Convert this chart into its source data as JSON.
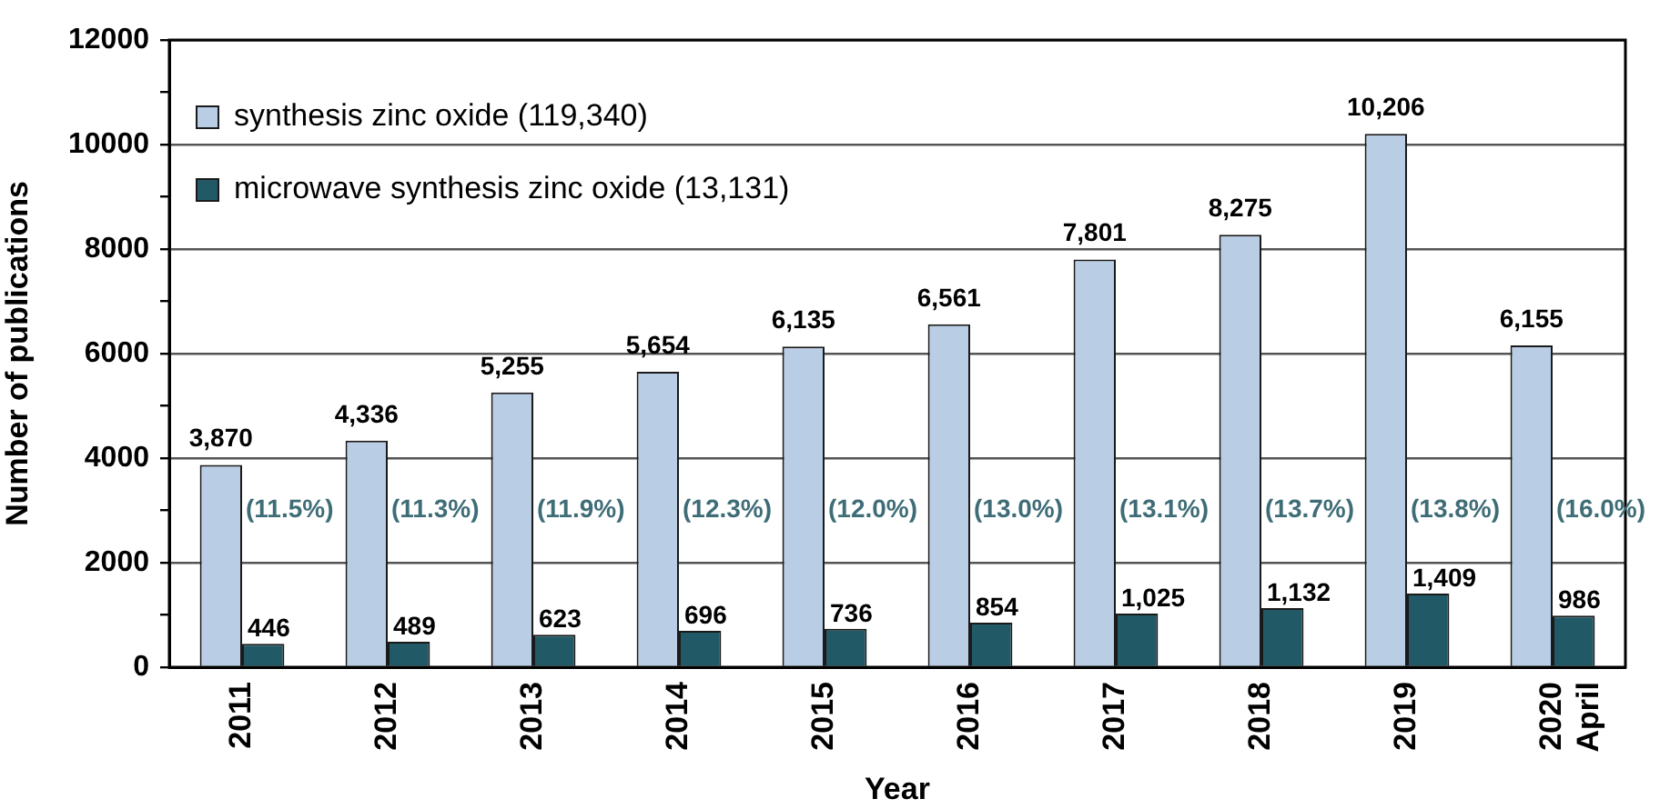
{
  "chart_data": {
    "type": "bar",
    "xlabel": "Year",
    "ylabel": "Number of publications",
    "categories": [
      "2011",
      "2012",
      "2013",
      "2014",
      "2015",
      "2016",
      "2017",
      "2018",
      "2019",
      "2020 April"
    ],
    "series": [
      {
        "name": "synthesis zinc oxide (119,340)",
        "color": "#b9cde5",
        "values": [
          3870,
          4336,
          5255,
          5654,
          6135,
          6561,
          7801,
          8275,
          10206,
          6155
        ],
        "value_labels": [
          "3,870",
          "4,336",
          "5,255",
          "5,654",
          "6,135",
          "6,561",
          "7,801",
          "8,275",
          "10,206",
          "6,155"
        ]
      },
      {
        "name": "microwave synthesis zinc oxide (13,131)",
        "color": "#215a66",
        "values": [
          446,
          489,
          623,
          696,
          736,
          854,
          1025,
          1132,
          1409,
          986
        ],
        "value_labels": [
          "446",
          "489",
          "623",
          "696",
          "736",
          "854",
          "1,025",
          "1,132",
          "1,409",
          "986"
        ]
      }
    ],
    "ylim": [
      0,
      12000
    ],
    "yticks": [
      0,
      {
        "value": 1000,
        "label": null
      },
      2000,
      {
        "value": 3000,
        "label": null
      },
      4000,
      {
        "value": 5000,
        "label": null
      },
      6000,
      {
        "value": 7000,
        "label": null
      },
      8000,
      {
        "value": 9000,
        "label": null
      },
      10000,
      {
        "value": 11000,
        "label": null
      },
      12000
    ],
    "annotations": [
      {
        "text": "(11.5%)",
        "x": "2011",
        "y": 3000
      },
      {
        "text": "(11.3%)",
        "x": "2012",
        "y": 3000
      },
      {
        "text": "(11.9%)",
        "x": "2013",
        "y": 3000
      },
      {
        "text": "(12.3%)",
        "x": "2014",
        "y": 3000
      },
      {
        "text": "(12.0%)",
        "x": "2015",
        "y": 3000
      },
      {
        "text": "(13.0%)",
        "x": "2016",
        "y": 3000
      },
      {
        "text": "(13.1%)",
        "x": "2017",
        "y": 3000
      },
      {
        "text": "(13.7%)",
        "x": "2018",
        "y": 3000
      },
      {
        "text": "(13.8%)",
        "x": "2019",
        "y": 3000
      },
      {
        "text": "(16.0%)",
        "x": "2020 April",
        "y": 3000
      }
    ],
    "grid": "y",
    "legend": "top left"
  }
}
